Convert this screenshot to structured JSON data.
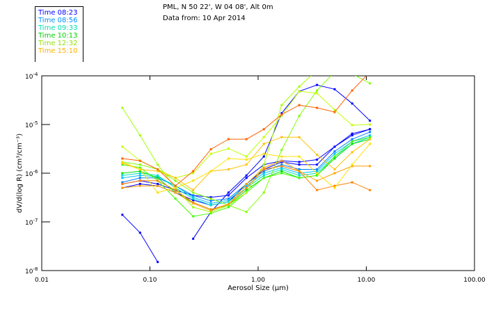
{
  "header": {
    "title_line1": "PML, N 50 22', W 04 08', Alt 0m",
    "title_line2": "Data from: 10 Apr 2014"
  },
  "legend": [
    {
      "label": "Time 08:23",
      "color": "#0000ff"
    },
    {
      "label": "Time 08:56",
      "color": "#0090ff"
    },
    {
      "label": "Time 09:33",
      "color": "#00e0b0"
    },
    {
      "label": "Time 10:13",
      "color": "#00d000"
    },
    {
      "label": "Time 12:32",
      "color": "#90e000"
    },
    {
      "label": "Time 15:10",
      "color": "#ffb000"
    }
  ],
  "chart_data": {
    "type": "line",
    "xscale": "log",
    "yscale": "log",
    "xlabel": "Aerosol Size (µm)",
    "ylabel": "dV/d(log R) (cm³/cm⁻³)",
    "xlim": [
      0.01,
      100
    ],
    "ylim": [
      1e-08,
      0.0001
    ],
    "xticks": [
      "0.01",
      "0.10",
      "1.00",
      "10.00",
      "100.00"
    ],
    "xtick_values": [
      0.01,
      0.1,
      1,
      10,
      100
    ],
    "yticks": [
      {
        "value": 0.0001,
        "base": "10",
        "exp": "-4"
      },
      {
        "value": 1e-05,
        "base": "10",
        "exp": "-5"
      },
      {
        "value": 1e-06,
        "base": "10",
        "exp": "-6"
      },
      {
        "value": 1e-07,
        "base": "10",
        "exp": "-7"
      },
      {
        "value": 1e-08,
        "base": "10",
        "exp": "-8"
      }
    ],
    "x": [
      0.0556,
      0.081,
      0.118,
      0.172,
      0.251,
      0.366,
      0.533,
      0.78,
      1.13,
      1.65,
      2.4,
      3.5,
      5.1,
      7.4,
      10.8
    ],
    "series": [
      {
        "name": "s1",
        "color": "#0000ff",
        "values": [
          1.4e-07,
          6e-08,
          1.5e-08,
          null,
          4.5e-08,
          1.6e-07,
          4e-07,
          9e-07,
          2.2e-06,
          1.7e-05,
          4.8e-05,
          6.5e-05,
          5.3e-05,
          2.7e-05,
          1.2e-05
        ]
      },
      {
        "name": "s2",
        "color": "#0000ff",
        "values": [
          5e-07,
          6e-07,
          5.5e-07,
          4e-07,
          2.8e-07,
          2.2e-07,
          2.6e-07,
          6e-07,
          1.2e-06,
          1.7e-06,
          1.5e-06,
          1.5e-06,
          3.5e-06,
          6e-06,
          8e-06
        ]
      },
      {
        "name": "s3",
        "color": "#0000ff",
        "values": [
          6e-07,
          7e-07,
          6e-07,
          4.5e-07,
          3.5e-07,
          3.2e-07,
          3.5e-07,
          8e-07,
          1.5e-06,
          1.8e-06,
          1.7e-06,
          1.9e-06,
          3.5e-06,
          6.5e-06,
          8e-06
        ]
      },
      {
        "name": "s4",
        "color": "#0080ff",
        "values": [
          6.5e-07,
          8e-07,
          8e-07,
          5.5e-07,
          3.5e-07,
          2.7e-07,
          3e-07,
          6e-07,
          1.1e-06,
          1.5e-06,
          1.2e-06,
          1.2e-06,
          2.8e-06,
          5e-06,
          7e-06
        ]
      },
      {
        "name": "s5",
        "color": "#00c0ff",
        "values": [
          8e-07,
          9e-07,
          8.5e-07,
          5.5e-07,
          3.2e-07,
          2.4e-07,
          2.8e-07,
          5.5e-07,
          1e-06,
          1.3e-06,
          1e-06,
          1.1e-06,
          2.5e-06,
          4.5e-06,
          6e-06
        ]
      },
      {
        "name": "s6",
        "color": "#00e0c0",
        "values": [
          9e-07,
          1e-06,
          9e-07,
          5e-07,
          3e-07,
          2.2e-07,
          2.6e-07,
          5e-07,
          9e-07,
          1.2e-06,
          9e-07,
          1e-06,
          2.2e-06,
          4e-06,
          5.5e-06
        ]
      },
      {
        "name": "s7",
        "color": "#00e000",
        "values": [
          1e-06,
          1.1e-06,
          8e-07,
          4e-07,
          2.5e-07,
          1.8e-07,
          2.2e-07,
          4.5e-07,
          8e-07,
          1.1e-06,
          8e-07,
          9e-07,
          2e-06,
          4e-06,
          5e-06
        ]
      },
      {
        "name": "s8",
        "color": "#40ff00",
        "values": [
          1.5e-06,
          1.3e-06,
          7e-07,
          3e-07,
          1.3e-07,
          1.5e-07,
          2e-07,
          4e-07,
          8e-07,
          1e-06,
          8e-07,
          9e-07,
          2.2e-06,
          4.5e-06,
          5.5e-06
        ]
      },
      {
        "name": "s9",
        "color": "#a0ff00",
        "values": [
          2.2e-05,
          6e-06,
          1.5e-06,
          5e-07,
          2e-07,
          1.6e-07,
          2.2e-07,
          4e-07,
          1.5e-06,
          2.5e-05,
          6e-05,
          0.00013,
          null,
          null,
          null
        ]
      },
      {
        "name": "s10",
        "color": "#c0ff00",
        "values": [
          3.5e-06,
          1.8e-06,
          1.2e-06,
          8e-07,
          1e-06,
          2.5e-06,
          3.2e-06,
          2.2e-06,
          5.5e-06,
          1.5e-05,
          4.8e-05,
          4.4e-05,
          2e-05,
          9.7e-06,
          1e-05
        ]
      },
      {
        "name": "s11",
        "color": "#80ff00",
        "values": [
          1.7e-06,
          1.5e-06,
          1.2e-06,
          7e-07,
          4e-07,
          3e-07,
          2.2e-07,
          1.6e-07,
          4e-07,
          3e-06,
          1.5e-05,
          5e-05,
          0.00012,
          0.00011,
          7e-05
        ]
      },
      {
        "name": "s12",
        "color": "#ff6000",
        "values": [
          2e-06,
          1.8e-06,
          1.2e-06,
          5.5e-07,
          1.1e-06,
          3.1e-06,
          5e-06,
          5e-06,
          8e-06,
          1.6e-05,
          2.5e-05,
          2.2e-05,
          1.8e-05,
          5e-05,
          0.00012
        ]
      },
      {
        "name": "s13",
        "color": "#ff8000",
        "values": [
          6e-07,
          7e-07,
          7e-07,
          4.5e-07,
          2.5e-07,
          1.8e-07,
          2.3e-07,
          5e-07,
          1.2e-06,
          1.4e-06,
          1.1e-06,
          4.5e-07,
          5.5e-07,
          6.5e-07,
          4.5e-07
        ]
      },
      {
        "name": "s14",
        "color": "#ffa000",
        "values": [
          5e-07,
          5.5e-07,
          5.5e-07,
          4e-07,
          2.4e-07,
          1.7e-07,
          2.3e-07,
          6e-07,
          1.3e-06,
          1.8e-06,
          1.1e-06,
          7e-07,
          1e-06,
          1.4e-06,
          1.4e-06
        ]
      },
      {
        "name": "s15",
        "color": "#ffc000",
        "values": [
          1.6e-06,
          1.2e-06,
          1.1e-06,
          8e-07,
          4.5e-07,
          1.1e-06,
          1.2e-06,
          1.5e-06,
          4e-06,
          5.5e-06,
          5.5e-06,
          2.4e-06,
          1.2e-06,
          2.7e-06,
          5e-06
        ]
      },
      {
        "name": "s16",
        "color": "#ffe000",
        "values": [
          1.7e-06,
          1.2e-06,
          4e-07,
          5e-07,
          7e-07,
          1.1e-06,
          2e-06,
          1.9e-06,
          2.5e-06,
          2.2e-06,
          2.2e-06,
          1e-06,
          5e-07,
          1.5e-06,
          4e-06
        ]
      }
    ]
  }
}
